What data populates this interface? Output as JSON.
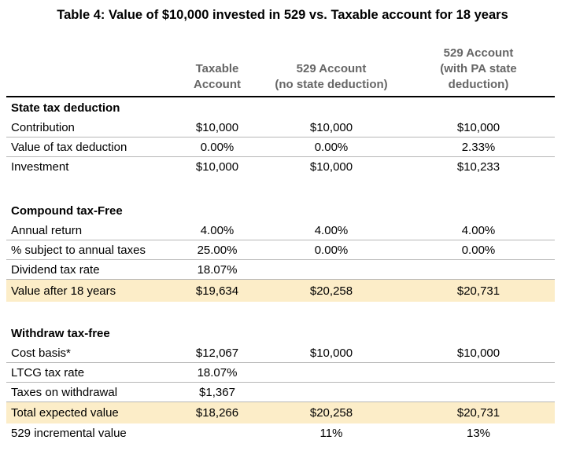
{
  "title": "Table 4: Value of $10,000 invested in 529 vs. Taxable account for 18 years",
  "columns": [
    "Taxable\nAccount",
    "529 Account\n(no state deduction)",
    "529 Account\n(with PA state\ndeduction)"
  ],
  "sections": [
    {
      "header": "State tax deduction",
      "rows": [
        {
          "label": "Contribution",
          "values": [
            "$10,000",
            "$10,000",
            "$10,000"
          ]
        },
        {
          "label": "Value of tax deduction",
          "values": [
            "0.00%",
            "0.00%",
            "2.33%"
          ]
        },
        {
          "label": "Investment",
          "values": [
            "$10,000",
            "$10,000",
            "$10,233"
          ]
        }
      ]
    },
    {
      "header": "Compound tax-Free",
      "rows": [
        {
          "label": "Annual return",
          "values": [
            "4.00%",
            "4.00%",
            "4.00%"
          ]
        },
        {
          "label": "% subject to annual taxes",
          "values": [
            "25.00%",
            "0.00%",
            "0.00%"
          ]
        },
        {
          "label": "Dividend tax rate",
          "values": [
            "18.07%",
            "",
            ""
          ]
        },
        {
          "label": "Value after 18 years",
          "values": [
            "$19,634",
            "$20,258",
            "$20,731"
          ],
          "highlight": true
        }
      ]
    },
    {
      "header": "Withdraw tax-free",
      "rows": [
        {
          "label": "Cost basis*",
          "values": [
            "$12,067",
            "$10,000",
            "$10,000"
          ]
        },
        {
          "label": "LTCG tax rate",
          "values": [
            "18.07%",
            "",
            ""
          ]
        },
        {
          "label": "Taxes on withdrawal",
          "values": [
            "$1,367",
            "",
            ""
          ]
        },
        {
          "label": "Total expected value",
          "values": [
            "$18,266",
            "$20,258",
            "$20,731"
          ],
          "highlight": true
        },
        {
          "label": "529 incremental value",
          "values": [
            "",
            "11%",
            "13%"
          ]
        }
      ]
    }
  ],
  "colors": {
    "highlight_row": "#fcedc8",
    "header_text": "#666666",
    "row_border": "#b6b6b6",
    "header_rule": "#000000",
    "body_text": "#000000",
    "background": "#ffffff"
  },
  "chart_data": {
    "type": "table",
    "title": "Table 4: Value of $10,000 invested in 529 vs. Taxable account for 18 years",
    "columns": [
      "",
      "Taxable Account",
      "529 Account (no state deduction)",
      "529 Account (with PA state deduction)"
    ],
    "rows": [
      [
        "State tax deduction",
        "",
        "",
        ""
      ],
      [
        "Contribution",
        "$10,000",
        "$10,000",
        "$10,000"
      ],
      [
        "Value of tax deduction",
        "0.00%",
        "0.00%",
        "2.33%"
      ],
      [
        "Investment",
        "$10,000",
        "$10,000",
        "$10,233"
      ],
      [
        "Compound tax-Free",
        "",
        "",
        ""
      ],
      [
        "Annual return",
        "4.00%",
        "4.00%",
        "4.00%"
      ],
      [
        "% subject to annual taxes",
        "25.00%",
        "0.00%",
        "0.00%"
      ],
      [
        "Dividend tax rate",
        "18.07%",
        "",
        ""
      ],
      [
        "Value after 18 years",
        "$19,634",
        "$20,258",
        "$20,731"
      ],
      [
        "Withdraw tax-free",
        "",
        "",
        ""
      ],
      [
        "Cost basis*",
        "$12,067",
        "$10,000",
        "$10,000"
      ],
      [
        "LTCG tax rate",
        "18.07%",
        "",
        ""
      ],
      [
        "Taxes on withdrawal",
        "$1,367",
        "",
        ""
      ],
      [
        "Total expected value",
        "$18,266",
        "$20,258",
        "$20,731"
      ],
      [
        "529 incremental value",
        "",
        "11%",
        "13%"
      ]
    ],
    "highlighted_rows": [
      "Value after 18 years",
      "Total expected value"
    ],
    "layout": {
      "grid": "horizontal-row-rules",
      "highlight_color": "#fcedc8"
    }
  }
}
